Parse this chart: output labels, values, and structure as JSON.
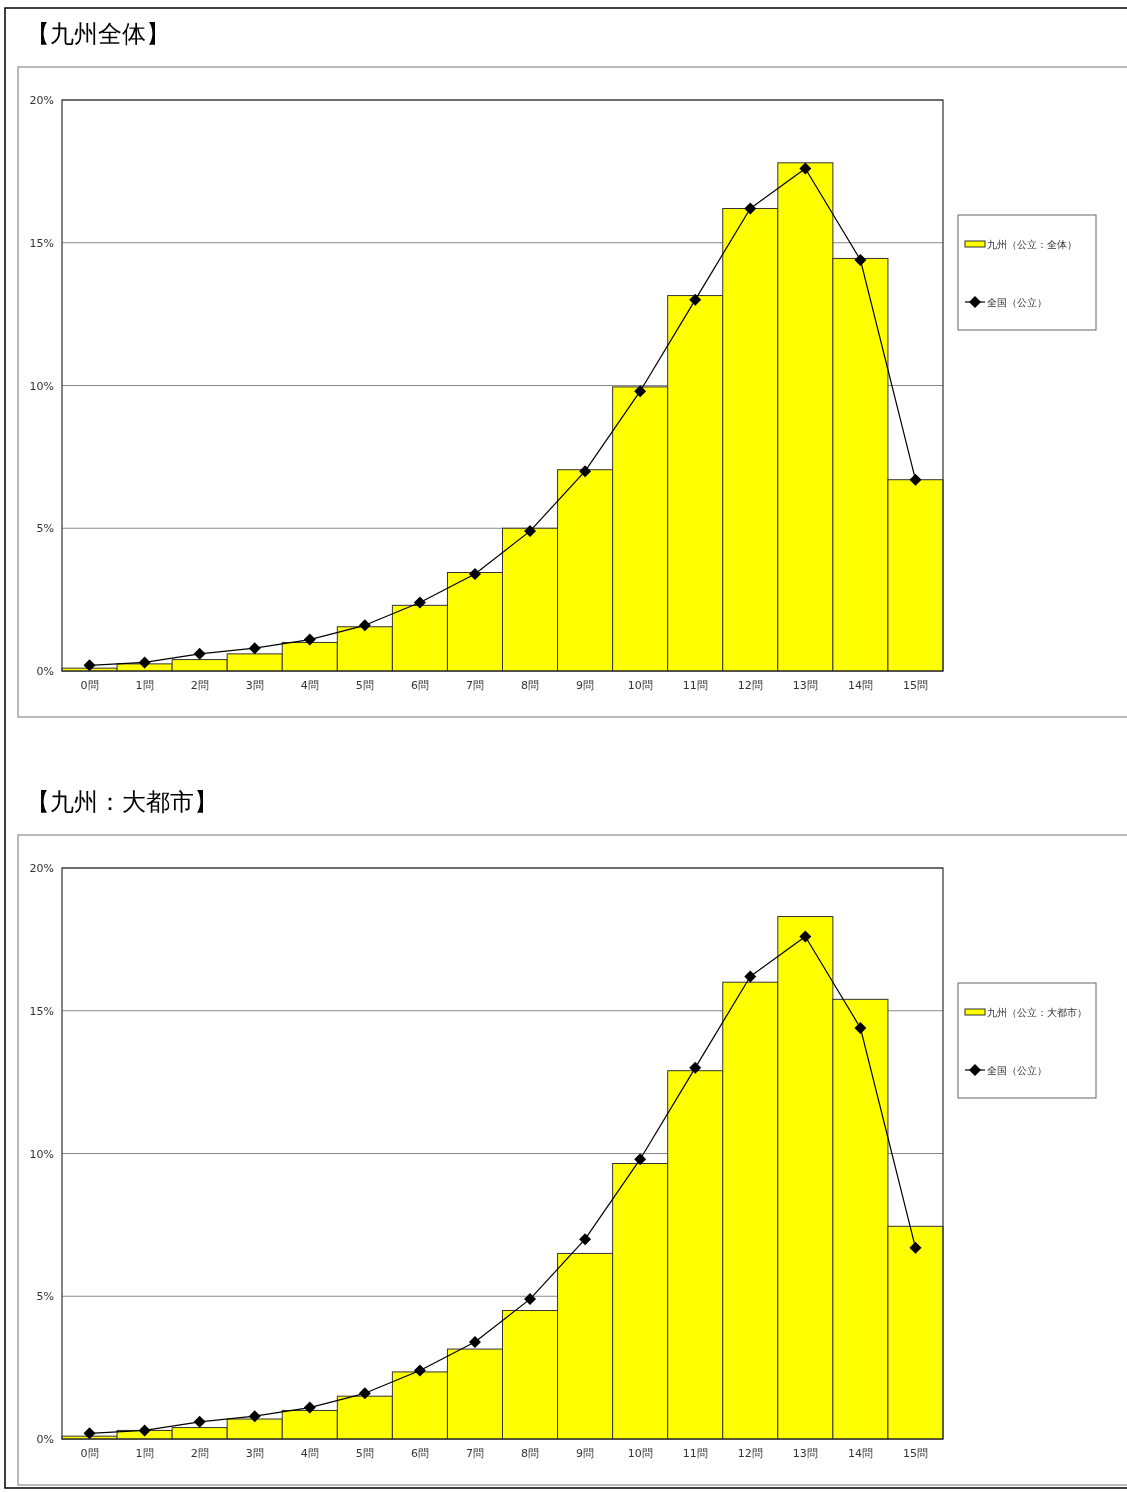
{
  "chart_data": [
    {
      "type": "bar",
      "title": "【九州全体】",
      "categories": [
        "0問",
        "1問",
        "2問",
        "3問",
        "4問",
        "5問",
        "6問",
        "7問",
        "8問",
        "9問",
        "10問",
        "11問",
        "12問",
        "13問",
        "14問",
        "15問"
      ],
      "series": [
        {
          "name": "九州（公立：全体）",
          "color": "#ffff00",
          "values": [
            0.1,
            0.25,
            0.4,
            0.6,
            1.0,
            1.55,
            2.3,
            3.45,
            5.0,
            7.05,
            9.95,
            13.15,
            16.2,
            17.8,
            14.45,
            6.7
          ]
        },
        {
          "name": "全国（公立）",
          "type": "line",
          "color": "#000000",
          "marker": "diamond",
          "values": [
            0.2,
            0.3,
            0.6,
            0.8,
            1.1,
            1.6,
            2.4,
            3.4,
            4.9,
            7.0,
            9.8,
            13.0,
            16.2,
            17.6,
            14.4,
            6.7
          ]
        }
      ],
      "ylim": [
        0,
        20
      ],
      "yticks": [
        {
          "value": 0,
          "label": "0%"
        },
        {
          "value": 5,
          "label": "5%"
        },
        {
          "value": 10,
          "label": "10%"
        },
        {
          "value": 15,
          "label": "15%"
        },
        {
          "value": 20,
          "label": "20%"
        }
      ],
      "grid": "y",
      "legend": "right"
    },
    {
      "type": "bar",
      "title": "【九州：大都市】",
      "categories": [
        "0問",
        "1問",
        "2問",
        "3問",
        "4問",
        "5問",
        "6問",
        "7問",
        "8問",
        "9問",
        "10問",
        "11問",
        "12問",
        "13問",
        "14問",
        "15問"
      ],
      "series": [
        {
          "name": "九州（公立：大都市）",
          "color": "#ffff00",
          "values": [
            0.1,
            0.3,
            0.4,
            0.7,
            1.0,
            1.5,
            2.35,
            3.15,
            4.5,
            6.5,
            9.65,
            12.9,
            16.0,
            18.3,
            15.4,
            7.45
          ]
        },
        {
          "name": "全国（公立）",
          "type": "line",
          "color": "#000000",
          "marker": "diamond",
          "values": [
            0.2,
            0.3,
            0.6,
            0.8,
            1.1,
            1.6,
            2.4,
            3.4,
            4.9,
            7.0,
            9.8,
            13.0,
            16.2,
            17.6,
            14.4,
            6.7
          ]
        }
      ],
      "ylim": [
        0,
        20
      ],
      "yticks": [
        {
          "value": 0,
          "label": "0%"
        },
        {
          "value": 5,
          "label": "5%"
        },
        {
          "value": 10,
          "label": "10%"
        },
        {
          "value": 15,
          "label": "15%"
        },
        {
          "value": 20,
          "label": "20%"
        }
      ],
      "grid": "y",
      "legend": "right"
    }
  ]
}
